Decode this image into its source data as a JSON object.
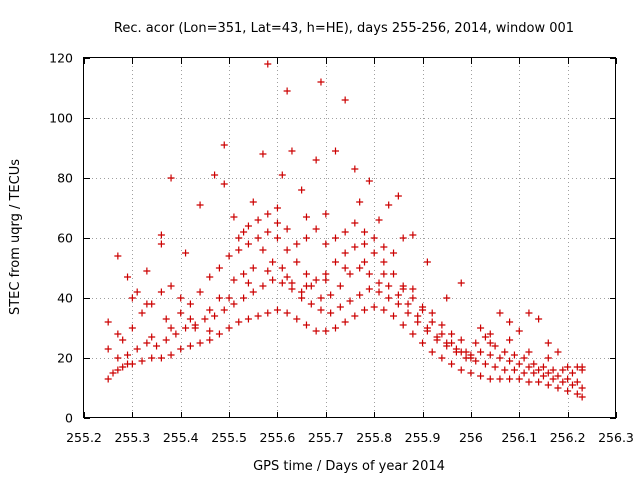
{
  "chart_data": {
    "type": "scatter",
    "title": "Rec. acor (Lon=351, Lat=43, h=HE), days 255-256, 2014, window 001",
    "xlabel": "GPS time / Days of year 2014",
    "ylabel": "STEC from uqrg / TECUs",
    "xlim": [
      255.2,
      256.3
    ],
    "ylim": [
      0,
      120
    ],
    "x_ticks": [
      255.2,
      255.3,
      255.4,
      255.5,
      255.6,
      255.7,
      255.8,
      255.9,
      256,
      256.1,
      256.2,
      256.3
    ],
    "x_tick_labels": [
      "255.2",
      "255.3",
      "255.4",
      "255.5",
      "255.6",
      "255.7",
      "255.8",
      "255.9",
      "256",
      "256.1",
      "256.2",
      "256.3"
    ],
    "y_ticks": [
      0,
      20,
      40,
      60,
      80,
      100,
      120
    ],
    "y_tick_labels": [
      "0",
      "20",
      "40",
      "60",
      "80",
      "100",
      "120"
    ],
    "grid": true,
    "marker": "+",
    "color": "#cc0000",
    "series": [
      {
        "points": [
          [
            255.25,
            13
          ],
          [
            255.26,
            15
          ],
          [
            255.27,
            16
          ],
          [
            255.28,
            17
          ],
          [
            255.29,
            18
          ],
          [
            255.3,
            18
          ],
          [
            255.32,
            19
          ],
          [
            255.34,
            20
          ],
          [
            255.36,
            20
          ],
          [
            255.38,
            21
          ],
          [
            255.4,
            23
          ],
          [
            255.42,
            24
          ],
          [
            255.44,
            25
          ],
          [
            255.46,
            26
          ],
          [
            255.48,
            28
          ],
          [
            255.5,
            30
          ],
          [
            255.52,
            32
          ],
          [
            255.54,
            33
          ],
          [
            255.56,
            34
          ],
          [
            255.58,
            35
          ],
          [
            255.6,
            36
          ],
          [
            255.62,
            35
          ],
          [
            255.64,
            33
          ],
          [
            255.66,
            31
          ],
          [
            255.68,
            29
          ],
          [
            255.7,
            29
          ],
          [
            255.72,
            30
          ],
          [
            255.74,
            32
          ],
          [
            255.76,
            34
          ],
          [
            255.78,
            36
          ],
          [
            255.8,
            37
          ],
          [
            255.82,
            36
          ],
          [
            255.84,
            34
          ],
          [
            255.86,
            31
          ],
          [
            255.88,
            28
          ],
          [
            255.9,
            25
          ],
          [
            255.92,
            22
          ],
          [
            255.94,
            20
          ],
          [
            255.96,
            18
          ],
          [
            255.98,
            16
          ],
          [
            256.0,
            15
          ],
          [
            256.02,
            14
          ],
          [
            256.04,
            13
          ],
          [
            256.06,
            13
          ],
          [
            256.08,
            13
          ],
          [
            256.1,
            13
          ],
          [
            256.12,
            12
          ],
          [
            256.14,
            12
          ],
          [
            256.16,
            11
          ],
          [
            256.18,
            10
          ],
          [
            256.2,
            9
          ],
          [
            256.22,
            8
          ],
          [
            256.23,
            7
          ],
          [
            255.25,
            23
          ],
          [
            255.27,
            20
          ],
          [
            255.29,
            21
          ],
          [
            255.31,
            23
          ],
          [
            255.33,
            25
          ],
          [
            255.35,
            24
          ],
          [
            255.37,
            26
          ],
          [
            255.39,
            28
          ],
          [
            255.41,
            30
          ],
          [
            255.43,
            31
          ],
          [
            255.45,
            33
          ],
          [
            255.47,
            34
          ],
          [
            255.49,
            36
          ],
          [
            255.51,
            38
          ],
          [
            255.53,
            40
          ],
          [
            255.55,
            42
          ],
          [
            255.57,
            44
          ],
          [
            255.59,
            46
          ],
          [
            255.61,
            45
          ],
          [
            255.63,
            43
          ],
          [
            255.65,
            40
          ],
          [
            255.67,
            38
          ],
          [
            255.69,
            36
          ],
          [
            255.71,
            35
          ],
          [
            255.73,
            37
          ],
          [
            255.75,
            39
          ],
          [
            255.77,
            41
          ],
          [
            255.79,
            43
          ],
          [
            255.81,
            42
          ],
          [
            255.83,
            40
          ],
          [
            255.85,
            38
          ],
          [
            255.87,
            35
          ],
          [
            255.89,
            32
          ],
          [
            255.91,
            29
          ],
          [
            255.93,
            26
          ],
          [
            255.95,
            24
          ],
          [
            255.97,
            22
          ],
          [
            255.99,
            20
          ],
          [
            256.01,
            19
          ],
          [
            256.03,
            18
          ],
          [
            256.05,
            17
          ],
          [
            256.07,
            16
          ],
          [
            256.09,
            16
          ],
          [
            256.11,
            15
          ],
          [
            256.13,
            15
          ],
          [
            256.15,
            14
          ],
          [
            256.17,
            13
          ],
          [
            256.19,
            12
          ],
          [
            256.21,
            11
          ],
          [
            256.23,
            10
          ],
          [
            255.25,
            32
          ],
          [
            255.27,
            28
          ],
          [
            255.28,
            26
          ],
          [
            255.3,
            30
          ],
          [
            255.32,
            35
          ],
          [
            255.34,
            38
          ],
          [
            255.36,
            42
          ],
          [
            255.38,
            44
          ],
          [
            255.4,
            40
          ],
          [
            255.42,
            38
          ],
          [
            255.44,
            42
          ],
          [
            255.46,
            47
          ],
          [
            255.48,
            50
          ],
          [
            255.5,
            54
          ],
          [
            255.52,
            56
          ],
          [
            255.54,
            58
          ],
          [
            255.56,
            60
          ],
          [
            255.58,
            62
          ],
          [
            255.6,
            60
          ],
          [
            255.62,
            56
          ],
          [
            255.64,
            52
          ],
          [
            255.66,
            48
          ],
          [
            255.68,
            46
          ],
          [
            255.7,
            48
          ],
          [
            255.72,
            52
          ],
          [
            255.74,
            55
          ],
          [
            255.76,
            57
          ],
          [
            255.78,
            58
          ],
          [
            255.8,
            55
          ],
          [
            255.82,
            52
          ],
          [
            255.84,
            48
          ],
          [
            255.86,
            44
          ],
          [
            255.88,
            40
          ],
          [
            255.9,
            36
          ],
          [
            255.92,
            32
          ],
          [
            255.94,
            28
          ],
          [
            255.96,
            25
          ],
          [
            255.98,
            22
          ],
          [
            256.0,
            21
          ],
          [
            256.02,
            22
          ],
          [
            256.04,
            21
          ],
          [
            256.06,
            20
          ],
          [
            256.08,
            19
          ],
          [
            256.1,
            18
          ],
          [
            256.12,
            17
          ],
          [
            256.14,
            16
          ],
          [
            256.16,
            15
          ],
          [
            256.18,
            14
          ],
          [
            256.2,
            13
          ],
          [
            256.22,
            12
          ],
          [
            255.27,
            54
          ],
          [
            255.29,
            47
          ],
          [
            255.31,
            42
          ],
          [
            255.33,
            49
          ],
          [
            255.36,
            58
          ],
          [
            255.36,
            61
          ],
          [
            255.38,
            80
          ],
          [
            255.41,
            55
          ],
          [
            255.44,
            71
          ],
          [
            255.47,
            81
          ],
          [
            255.49,
            91
          ],
          [
            255.49,
            78
          ],
          [
            255.51,
            67
          ],
          [
            255.53,
            62
          ],
          [
            255.55,
            72
          ],
          [
            255.57,
            88
          ],
          [
            255.58,
            118
          ],
          [
            255.6,
            70
          ],
          [
            255.61,
            81
          ],
          [
            255.62,
            109
          ],
          [
            255.63,
            89
          ],
          [
            255.65,
            76
          ],
          [
            255.66,
            67
          ],
          [
            255.68,
            86
          ],
          [
            255.69,
            112
          ],
          [
            255.7,
            68
          ],
          [
            255.72,
            89
          ],
          [
            255.74,
            106
          ],
          [
            255.76,
            83
          ],
          [
            255.77,
            72
          ],
          [
            255.79,
            79
          ],
          [
            255.81,
            66
          ],
          [
            255.83,
            71
          ],
          [
            255.85,
            74
          ],
          [
            255.86,
            60
          ],
          [
            255.88,
            61
          ],
          [
            255.91,
            52
          ],
          [
            255.95,
            40
          ],
          [
            255.98,
            45
          ],
          [
            255.3,
            40
          ],
          [
            255.33,
            38
          ],
          [
            255.37,
            33
          ],
          [
            255.4,
            35
          ],
          [
            255.43,
            30
          ],
          [
            255.46,
            29
          ],
          [
            255.48,
            40
          ],
          [
            255.51,
            46
          ],
          [
            255.53,
            48
          ],
          [
            255.55,
            50
          ],
          [
            255.57,
            56
          ],
          [
            255.59,
            52
          ],
          [
            255.61,
            50
          ],
          [
            255.63,
            45
          ],
          [
            255.65,
            42
          ],
          [
            255.67,
            44
          ],
          [
            255.69,
            40
          ],
          [
            255.71,
            41
          ],
          [
            255.73,
            44
          ],
          [
            255.75,
            48
          ],
          [
            255.77,
            50
          ],
          [
            255.79,
            48
          ],
          [
            255.81,
            45
          ],
          [
            255.83,
            44
          ],
          [
            255.85,
            41
          ],
          [
            255.87,
            38
          ],
          [
            255.89,
            34
          ],
          [
            255.91,
            30
          ],
          [
            255.93,
            27
          ],
          [
            255.95,
            25
          ],
          [
            255.97,
            23
          ],
          [
            255.99,
            22
          ],
          [
            256.01,
            25
          ],
          [
            256.03,
            27
          ],
          [
            256.05,
            24
          ],
          [
            256.07,
            22
          ],
          [
            256.09,
            21
          ],
          [
            256.11,
            20
          ],
          [
            256.13,
            18
          ],
          [
            256.15,
            17
          ],
          [
            256.17,
            16
          ],
          [
            256.19,
            16
          ],
          [
            256.21,
            15
          ],
          [
            256.23,
            16
          ],
          [
            255.52,
            60
          ],
          [
            255.54,
            64
          ],
          [
            255.56,
            66
          ],
          [
            255.58,
            68
          ],
          [
            255.6,
            65
          ],
          [
            255.62,
            63
          ],
          [
            255.64,
            58
          ],
          [
            255.66,
            60
          ],
          [
            255.68,
            63
          ],
          [
            255.7,
            58
          ],
          [
            255.72,
            60
          ],
          [
            255.74,
            62
          ],
          [
            255.76,
            65
          ],
          [
            255.78,
            62
          ],
          [
            255.8,
            60
          ],
          [
            255.82,
            57
          ],
          [
            255.84,
            55
          ],
          [
            256.02,
            30
          ],
          [
            256.04,
            28
          ],
          [
            256.06,
            35
          ],
          [
            256.08,
            32
          ],
          [
            256.1,
            29
          ],
          [
            256.12,
            35
          ],
          [
            256.14,
            33
          ],
          [
            256.16,
            25
          ],
          [
            256.18,
            22
          ],
          [
            256.2,
            17
          ],
          [
            256.22,
            17
          ],
          [
            256.23,
            17
          ],
          [
            256.16,
            20
          ],
          [
            256.12,
            22
          ],
          [
            256.08,
            26
          ],
          [
            256.04,
            25
          ],
          [
            256.0,
            20
          ],
          [
            255.96,
            28
          ],
          [
            255.92,
            35
          ],
          [
            255.88,
            43
          ],
          [
            255.34,
            27
          ],
          [
            255.38,
            30
          ],
          [
            255.42,
            33
          ],
          [
            255.46,
            36
          ],
          [
            255.5,
            40
          ],
          [
            255.54,
            45
          ],
          [
            255.58,
            49
          ],
          [
            255.62,
            47
          ],
          [
            255.66,
            44
          ],
          [
            255.7,
            46
          ],
          [
            255.74,
            50
          ],
          [
            255.78,
            52
          ],
          [
            255.82,
            48
          ],
          [
            255.86,
            43
          ],
          [
            255.9,
            37
          ],
          [
            255.94,
            31
          ],
          [
            255.98,
            26
          ]
        ]
      }
    ]
  }
}
